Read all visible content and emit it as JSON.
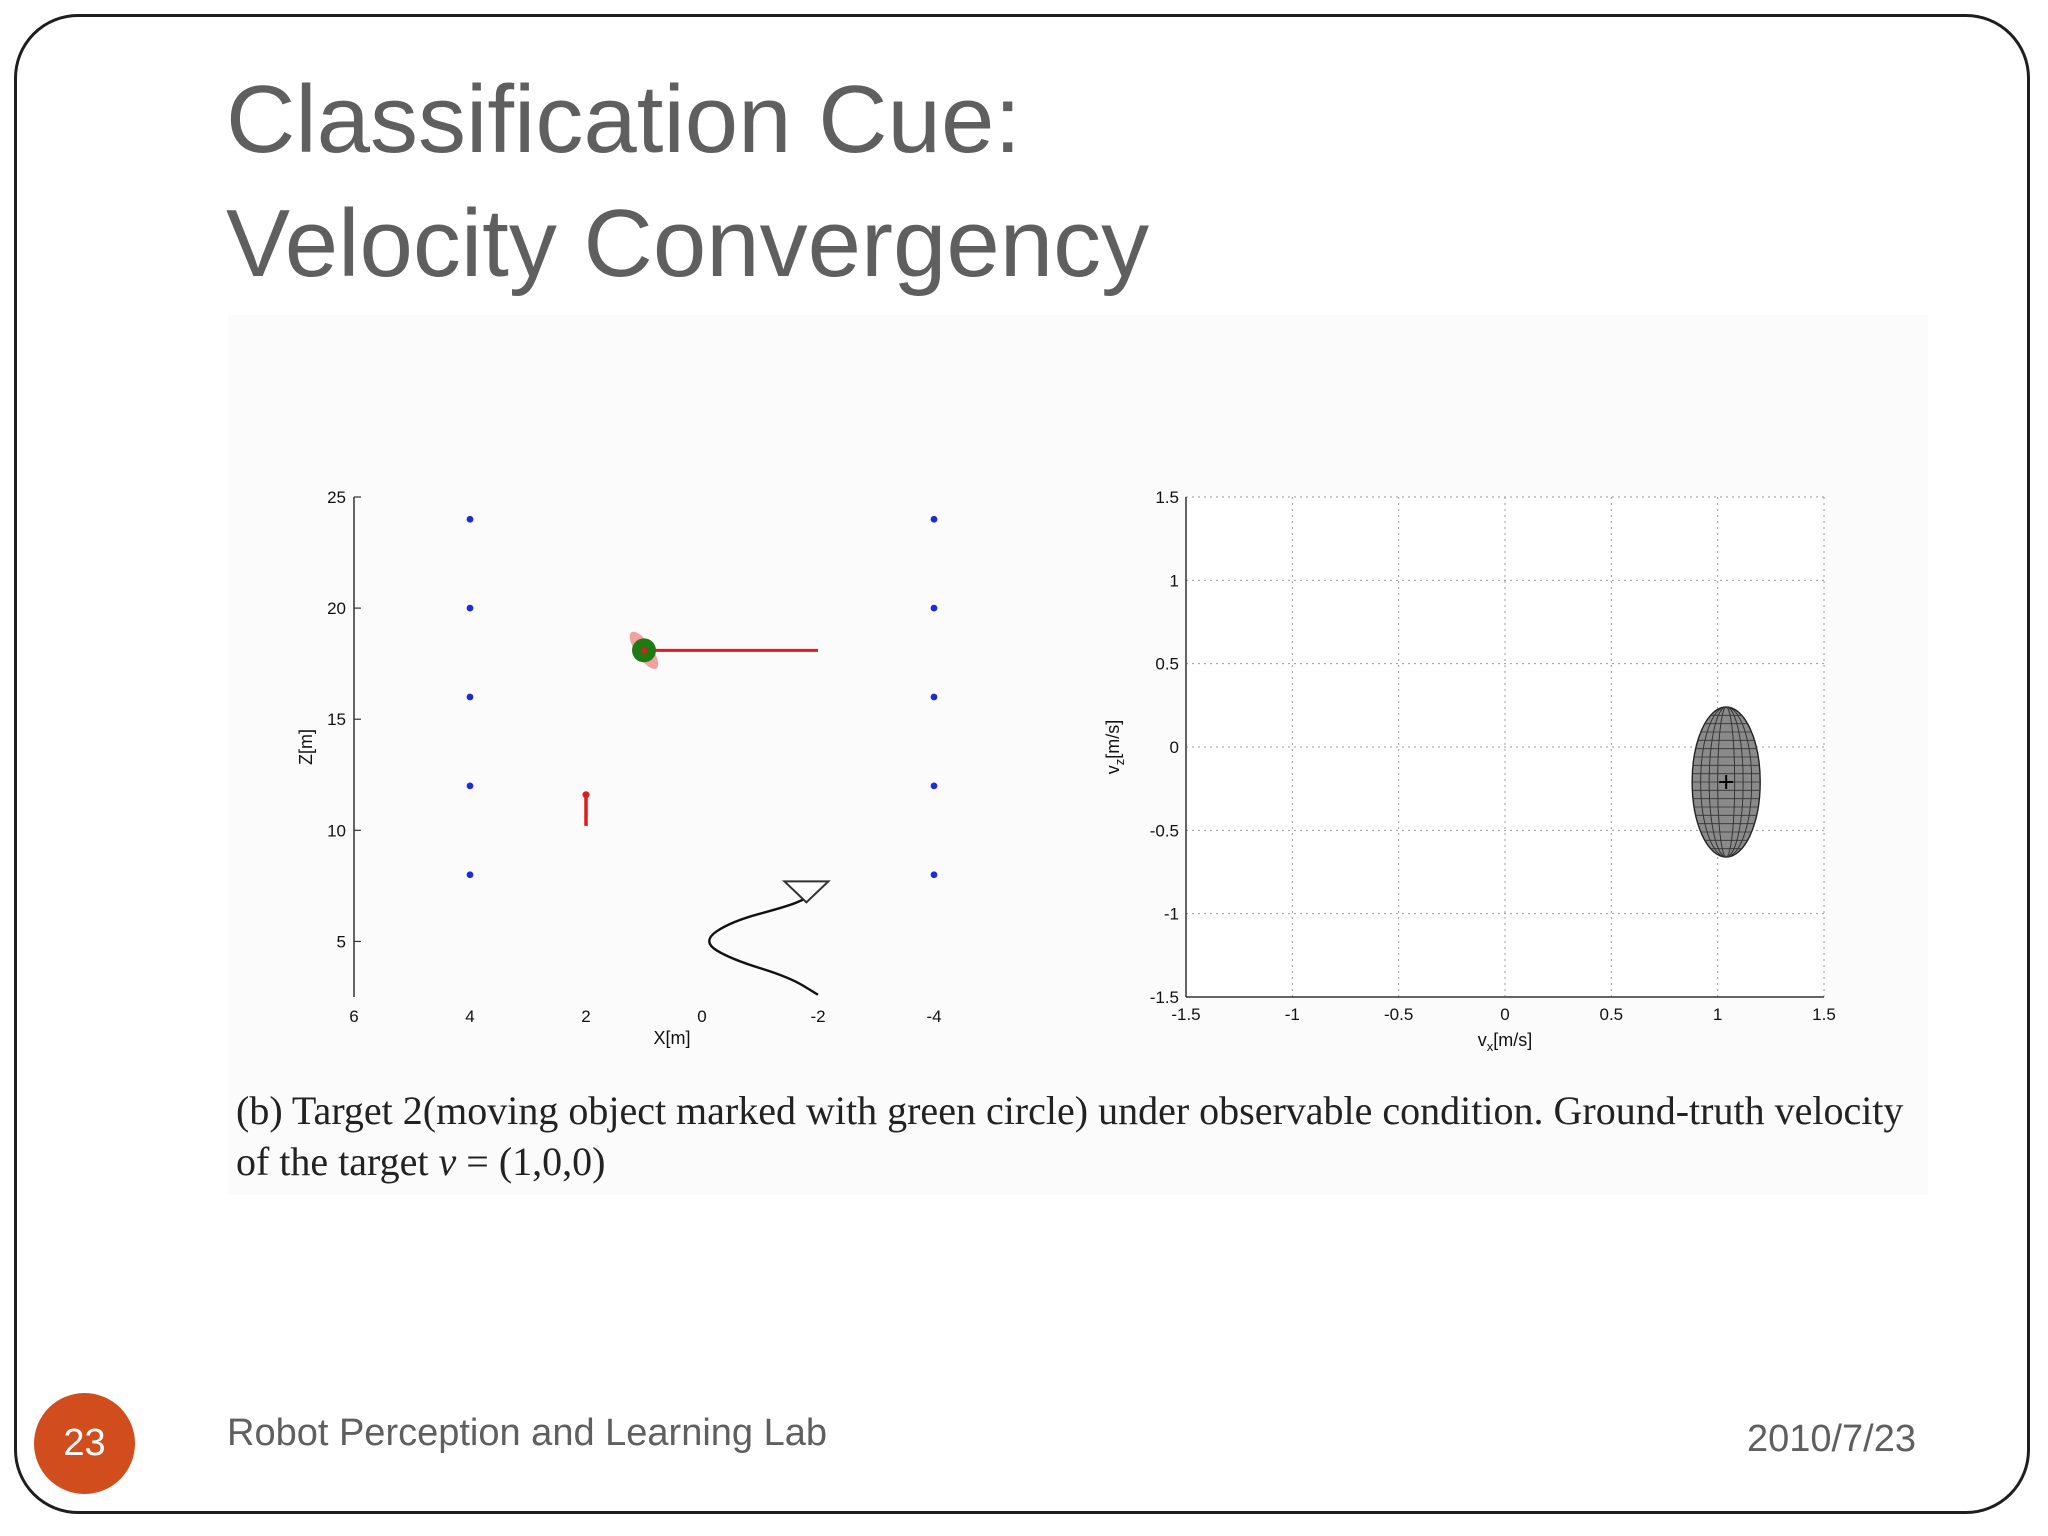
{
  "slide": {
    "title_line1": "Classification Cue:",
    "title_line2": "Velocity Convergency",
    "caption_prefix": "(b) Target 2(moving object marked with green circle) under observable condition. Ground-truth velocity of the target ",
    "caption_var": "v",
    "caption_suffix": " = (1,0,0)",
    "page_number": "23",
    "footer_left": "Robot Perception and Learning Lab",
    "footer_right": "2010/7/23"
  },
  "colors": {
    "title_text": "#5f5f5f",
    "badge": "#d24d1e",
    "landmark": "#1f2bd4",
    "velocity_arrow": "#e21c1c",
    "target_circle": "#1f7a14",
    "target_uncertainty": "#f2a0a0",
    "ellipse_fill": "#8a8a8a"
  },
  "chart_data": [
    {
      "type": "scatter",
      "xlabel": "X[m]",
      "ylabel": "Z[m]",
      "xlim": [
        6,
        -5
      ],
      "ylim": [
        2.5,
        25
      ],
      "x_reversed": true,
      "xticks": [
        "6",
        "4",
        "2",
        "0",
        "-2",
        "-4"
      ],
      "yticks": [
        "5",
        "10",
        "15",
        "20",
        "25"
      ],
      "grid": false,
      "series": [
        {
          "kind": "landmarks",
          "points": [
            [
              4,
              24
            ],
            [
              4,
              20
            ],
            [
              4,
              16
            ],
            [
              4,
              12
            ],
            [
              4,
              8
            ],
            [
              -4,
              24
            ],
            [
              -4,
              20
            ],
            [
              -4,
              16
            ],
            [
              -4,
              12
            ],
            [
              -4,
              8
            ]
          ]
        },
        {
          "kind": "target",
          "center": [
            1,
            18.1
          ],
          "radius_m": 0.22,
          "velocity_end": [
            -2,
            18.1
          ]
        },
        {
          "kind": "short_velocity",
          "from": [
            2,
            10.2
          ],
          "to": [
            2,
            11.6
          ]
        },
        {
          "kind": "camera_trajectory",
          "points": [
            [
              -2,
              2.6
            ],
            [
              -1.5,
              3.4
            ],
            [
              -0.5,
              4.2
            ],
            [
              0,
              5.0
            ],
            [
              -0.5,
              5.9
            ],
            [
              -1.5,
              6.6
            ],
            [
              -1.8,
              6.95
            ]
          ],
          "camera_at": [
            -1.8,
            7.3
          ]
        }
      ]
    },
    {
      "type": "scatter",
      "xlabel": "v_x[m/s]",
      "ylabel": "v_z[m/s]",
      "xlim": [
        -1.5,
        1.5
      ],
      "ylim": [
        -1.5,
        1.5
      ],
      "xticks": [
        "-1.5",
        "-1",
        "-0.5",
        "0",
        "0.5",
        "1",
        "1.5"
      ],
      "yticks": [
        "-1.5",
        "-1",
        "-0.5",
        "0",
        "0.5",
        "1",
        "1.5"
      ],
      "grid": true,
      "series": [
        {
          "kind": "velocity_estimate",
          "mean": [
            1.04,
            -0.21
          ],
          "semi_axis_x": 0.16,
          "semi_axis_z": 0.45
        }
      ]
    }
  ]
}
